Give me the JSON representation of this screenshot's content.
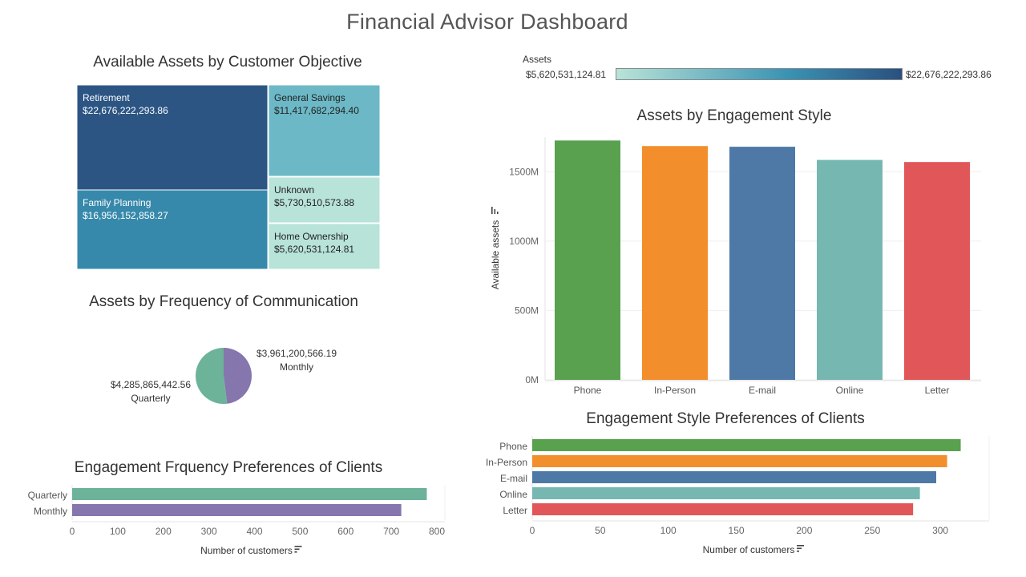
{
  "dashboard": {
    "title": "Financial Advisor Dashboard"
  },
  "colors": {
    "phone": "#59a14f",
    "in_person": "#f28e2b",
    "email": "#4e79a7",
    "online": "#76b7b2",
    "letter": "#e15759",
    "quarterly": "#6db39a",
    "monthly": "#8576ae",
    "assets_min": "#b8e3d8",
    "assets_mid": "#3a93b3",
    "assets_max": "#2a5080"
  },
  "legend": {
    "title": "Assets",
    "min_label": "$5,620,531,124.81",
    "max_label": "$22,676,222,293.86"
  },
  "chart_data": [
    {
      "id": "treemap",
      "type": "treemap",
      "title": "Available Assets by Customer Objective",
      "items": [
        {
          "name": "Retirement",
          "value_label": "$22,676,222,293.86",
          "value": 22676222293.86,
          "color": "#2c5584",
          "text_color": "#ffffff"
        },
        {
          "name": "Family Planning",
          "value_label": "$16,956,152,858.27",
          "value": 16956152858.27,
          "color": "#3789ab",
          "text_color": "#ffffff"
        },
        {
          "name": "General Savings",
          "value_label": "$11,417,682,294.40",
          "value": 11417682294.4,
          "color": "#6cb8c6",
          "text_color": "#222222"
        },
        {
          "name": "Unknown",
          "value_label": "$5,730,510,573.88",
          "value": 5730510573.88,
          "color": "#b8e3d8",
          "text_color": "#222222"
        },
        {
          "name": "Home Ownership",
          "value_label": "$5,620,531,124.81",
          "value": 5620531124.81,
          "color": "#b8e3d8",
          "text_color": "#222222"
        }
      ]
    },
    {
      "id": "pie",
      "type": "pie",
      "title": "Assets by Frequency of Communication",
      "slices": [
        {
          "name": "Monthly",
          "value": 3961200566.19,
          "value_label": "$3,961,200,566.19"
        },
        {
          "name": "Quarterly",
          "value": 4285865442.56,
          "value_label": "$4,285,865,442.56"
        }
      ]
    },
    {
      "id": "freq-bars",
      "type": "bar",
      "orientation": "horizontal",
      "title": "Engagement Frquency Preferences of Clients",
      "xlabel": "Number of customers",
      "categories": [
        "Quarterly",
        "Monthly"
      ],
      "values": [
        778,
        722
      ],
      "xlim": [
        0,
        800
      ],
      "ticks": [
        0,
        100,
        200,
        300,
        400,
        500,
        600,
        700,
        800
      ],
      "tick_labels": [
        "0",
        "100",
        "200",
        "300",
        "400",
        "500",
        "600",
        "700",
        "800"
      ]
    },
    {
      "id": "style-assets",
      "type": "bar",
      "orientation": "vertical",
      "title": "Assets by Engagement Style",
      "ylabel": "Available assets",
      "categories": [
        "Phone",
        "In-Person",
        "E-mail",
        "Online",
        "Letter"
      ],
      "values": [
        1725,
        1685,
        1680,
        1585,
        1570
      ],
      "units": "millions",
      "ylim": [
        0,
        1750
      ],
      "ticks": [
        0,
        500,
        1000,
        1500
      ],
      "tick_labels": [
        "0M",
        "500M",
        "1000M",
        "1500M"
      ]
    },
    {
      "id": "style-bars",
      "type": "bar",
      "orientation": "horizontal",
      "title": "Engagement Style Preferences of Clients",
      "xlabel": "Number of customers",
      "categories": [
        "Phone",
        "In-Person",
        "E-mail",
        "Online",
        "Letter"
      ],
      "values": [
        315,
        305,
        297,
        285,
        280
      ],
      "xlim": [
        0,
        330
      ],
      "ticks": [
        0,
        50,
        100,
        150,
        200,
        250,
        300
      ],
      "tick_labels": [
        "0",
        "50",
        "100",
        "150",
        "200",
        "250",
        "300"
      ]
    }
  ]
}
